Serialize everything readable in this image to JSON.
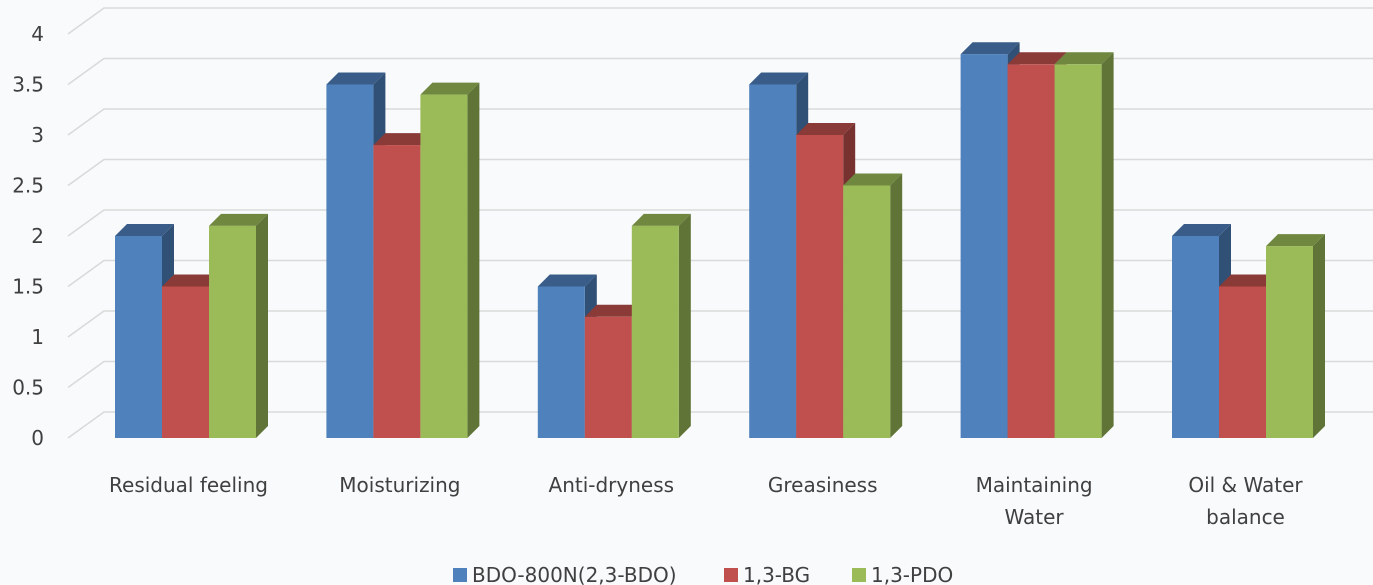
{
  "chart_data": {
    "type": "bar",
    "style": "3d-clustered-column",
    "categories": [
      [
        "Residual feeling"
      ],
      [
        "Moisturizing"
      ],
      [
        "Anti-dryness"
      ],
      [
        "Greasiness"
      ],
      [
        "Maintaining",
        "Water"
      ],
      [
        "Oil & Water",
        "balance"
      ]
    ],
    "series": [
      {
        "name": "BDO-800N(2,3-BDO)",
        "color": "#4f81bd",
        "values": [
          2.0,
          3.5,
          1.5,
          3.5,
          3.8,
          2.0
        ]
      },
      {
        "name": "1,3-BG",
        "color": "#c0504d",
        "values": [
          1.5,
          2.9,
          1.2,
          3.0,
          3.7,
          1.5
        ]
      },
      {
        "name": "1,3-PDO",
        "color": "#9bbb59",
        "values": [
          2.1,
          3.4,
          2.1,
          2.5,
          3.7,
          1.9
        ]
      }
    ],
    "y_ticks": [
      "0",
      "0.5",
      "1",
      "1.5",
      "2",
      "2.5",
      "3",
      "3.5",
      "4"
    ],
    "ylim": [
      0,
      4
    ],
    "grid": true,
    "legend": "bottom",
    "gridline_color": "#d9d9d9",
    "title": "",
    "xlabel": "",
    "ylabel": ""
  }
}
